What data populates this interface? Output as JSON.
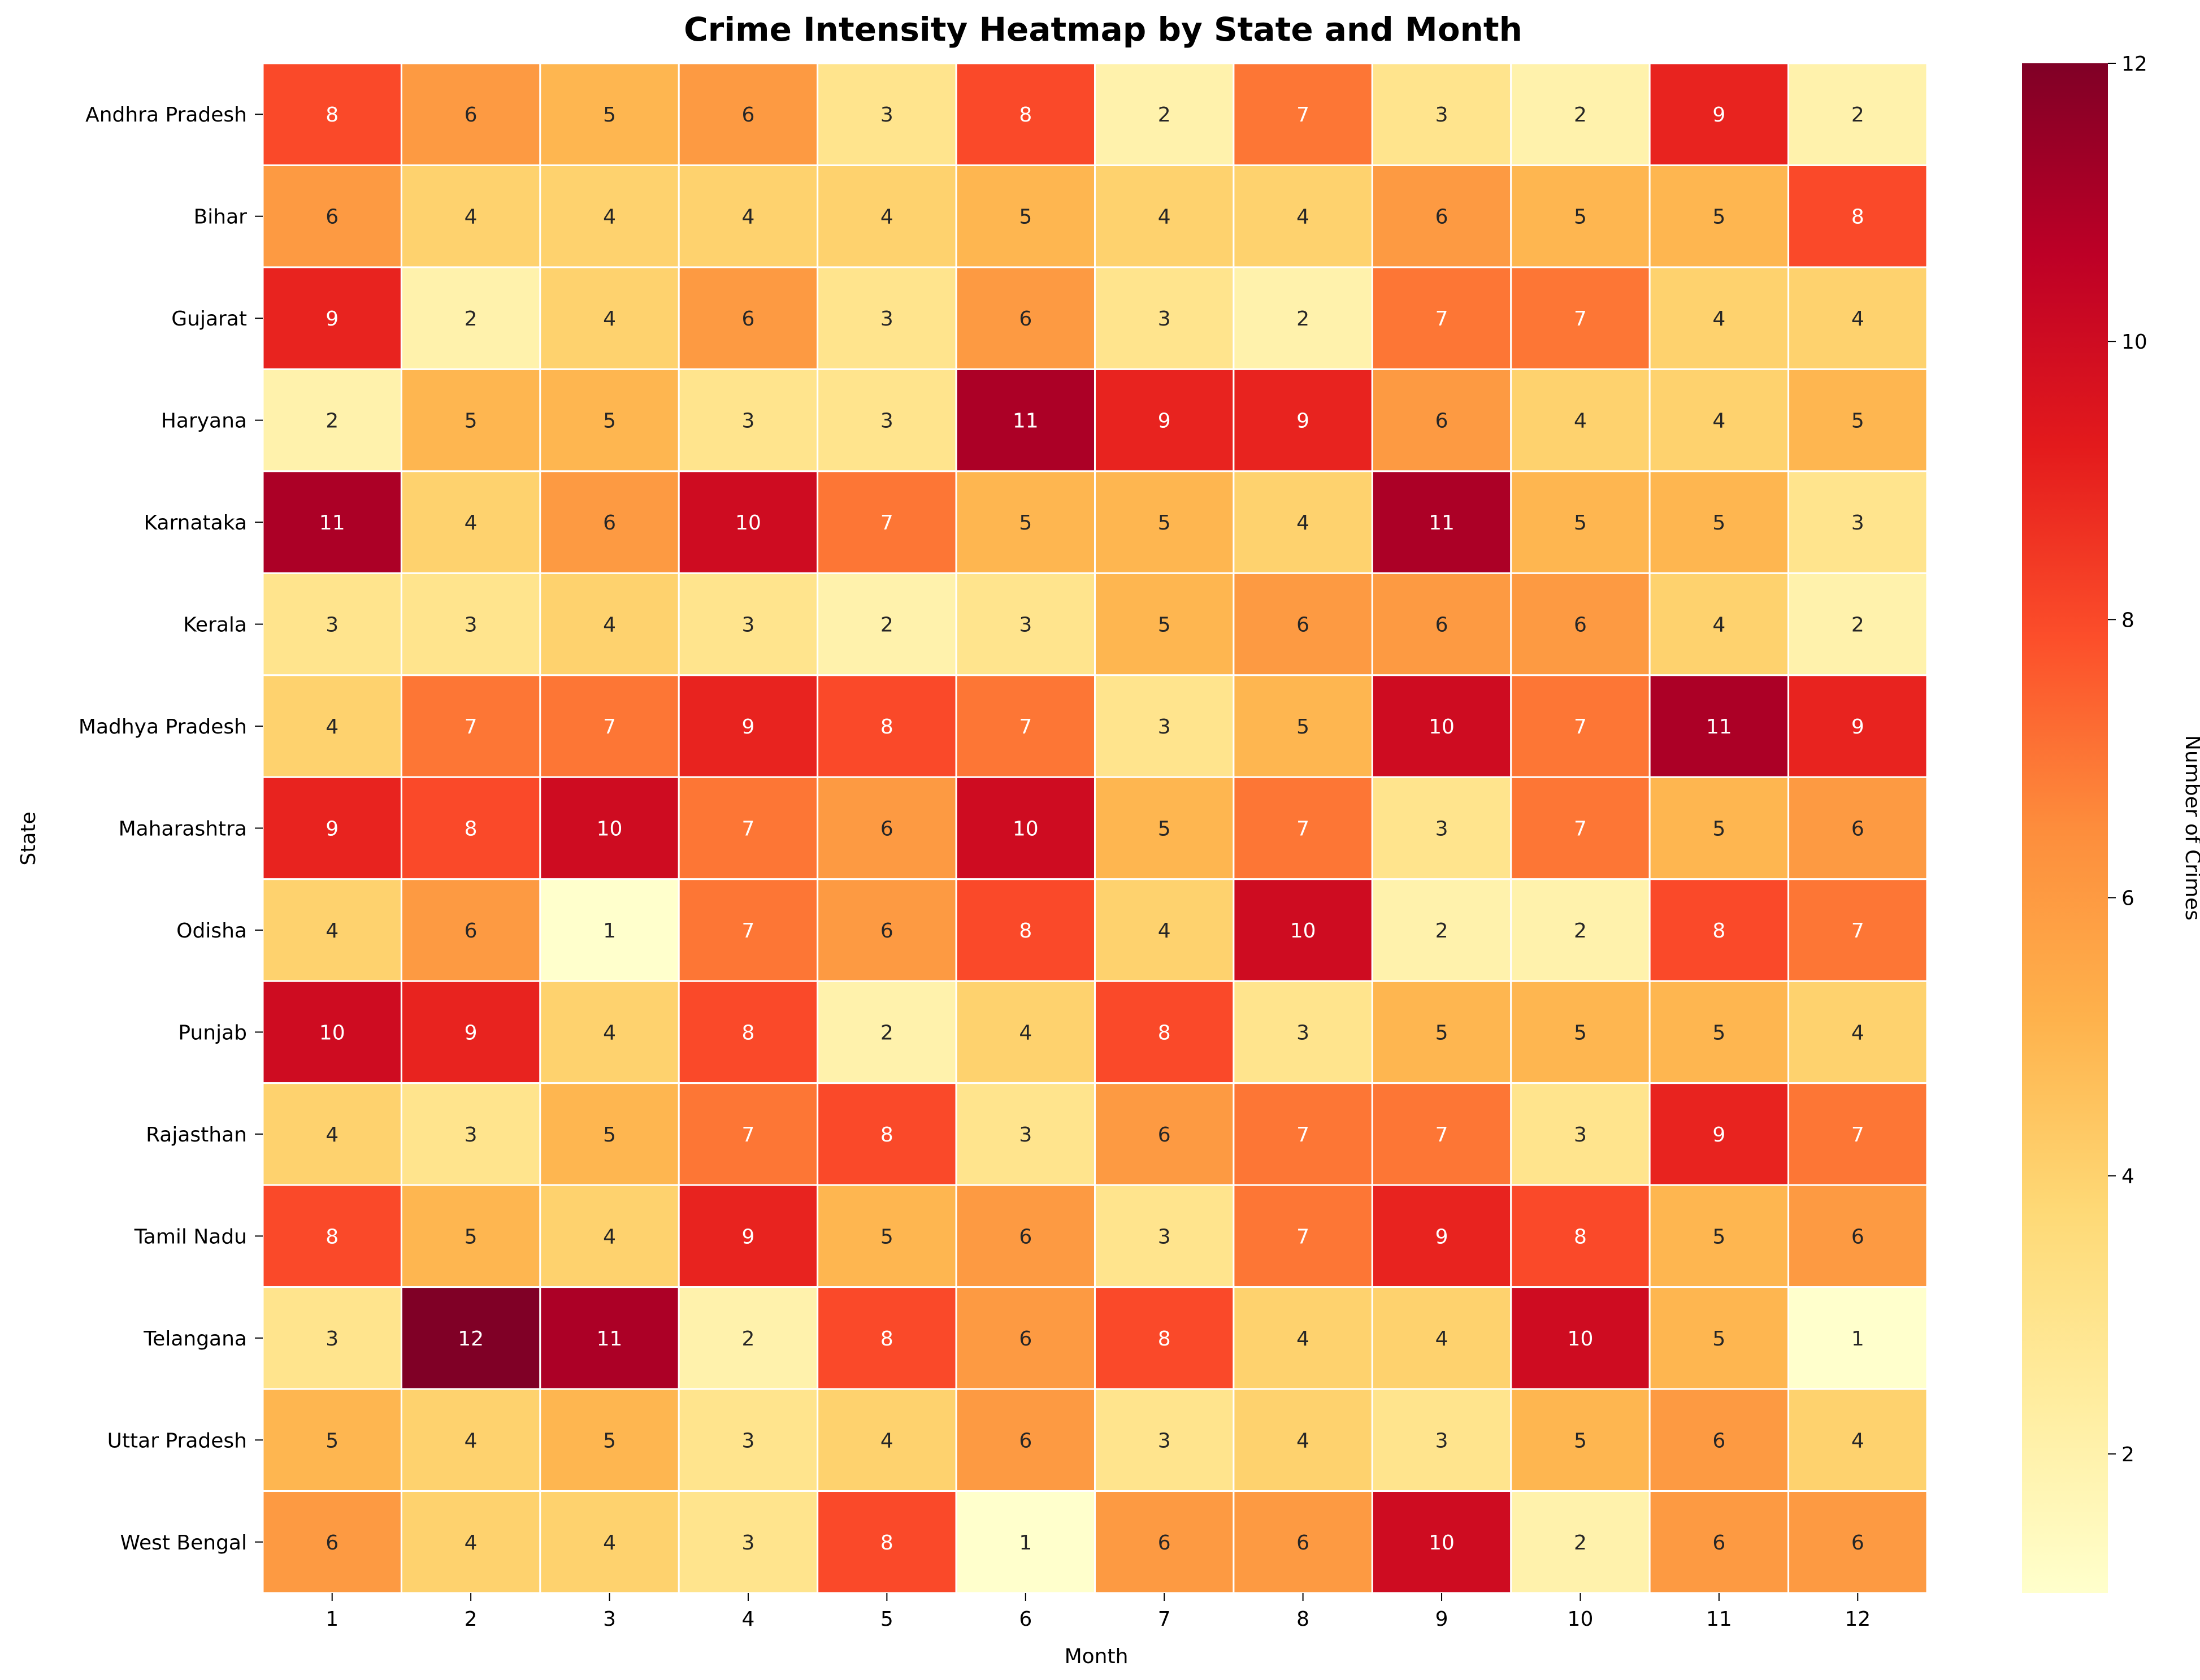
{
  "chart_data": {
    "type": "heatmap",
    "title": "Crime Intensity Heatmap by State and Month",
    "xlabel": "Month",
    "ylabel": "State",
    "colorbar_label": "Number of Crimes",
    "colormap": "YlOrRd",
    "vmin": 1,
    "vmax": 12,
    "colorbar_ticks": [
      2,
      4,
      6,
      8,
      10,
      12
    ],
    "x_categories": [
      "1",
      "2",
      "3",
      "4",
      "5",
      "6",
      "7",
      "8",
      "9",
      "10",
      "11",
      "12"
    ],
    "y_categories": [
      "Andhra Pradesh",
      "Bihar",
      "Gujarat",
      "Haryana",
      "Karnataka",
      "Kerala",
      "Madhya Pradesh",
      "Maharashtra",
      "Odisha",
      "Punjab",
      "Rajasthan",
      "Tamil Nadu",
      "Telangana",
      "Uttar Pradesh",
      "West Bengal"
    ],
    "values": [
      [
        8,
        6,
        5,
        6,
        3,
        8,
        2,
        7,
        3,
        2,
        9,
        2
      ],
      [
        6,
        4,
        4,
        4,
        4,
        5,
        4,
        4,
        6,
        5,
        5,
        8
      ],
      [
        9,
        2,
        4,
        6,
        3,
        6,
        3,
        2,
        7,
        7,
        4,
        4
      ],
      [
        2,
        5,
        5,
        3,
        3,
        11,
        9,
        9,
        6,
        4,
        4,
        5
      ],
      [
        11,
        4,
        6,
        10,
        7,
        5,
        5,
        4,
        11,
        5,
        5,
        3
      ],
      [
        3,
        3,
        4,
        3,
        2,
        3,
        5,
        6,
        6,
        6,
        4,
        2
      ],
      [
        4,
        7,
        7,
        9,
        8,
        7,
        3,
        5,
        10,
        7,
        11,
        9
      ],
      [
        9,
        8,
        10,
        7,
        6,
        10,
        5,
        7,
        3,
        7,
        5,
        6
      ],
      [
        4,
        6,
        1,
        7,
        6,
        8,
        4,
        10,
        2,
        2,
        8,
        7
      ],
      [
        10,
        9,
        4,
        8,
        2,
        4,
        8,
        3,
        5,
        5,
        5,
        4
      ],
      [
        4,
        3,
        5,
        7,
        8,
        3,
        6,
        7,
        7,
        3,
        9,
        7
      ],
      [
        8,
        5,
        4,
        9,
        5,
        6,
        3,
        7,
        9,
        8,
        5,
        6
      ],
      [
        3,
        12,
        11,
        2,
        8,
        6,
        8,
        4,
        4,
        10,
        5,
        1
      ],
      [
        5,
        4,
        5,
        3,
        4,
        6,
        3,
        4,
        3,
        5,
        6,
        4
      ],
      [
        6,
        4,
        4,
        3,
        8,
        1,
        6,
        6,
        10,
        2,
        6,
        6
      ]
    ]
  }
}
